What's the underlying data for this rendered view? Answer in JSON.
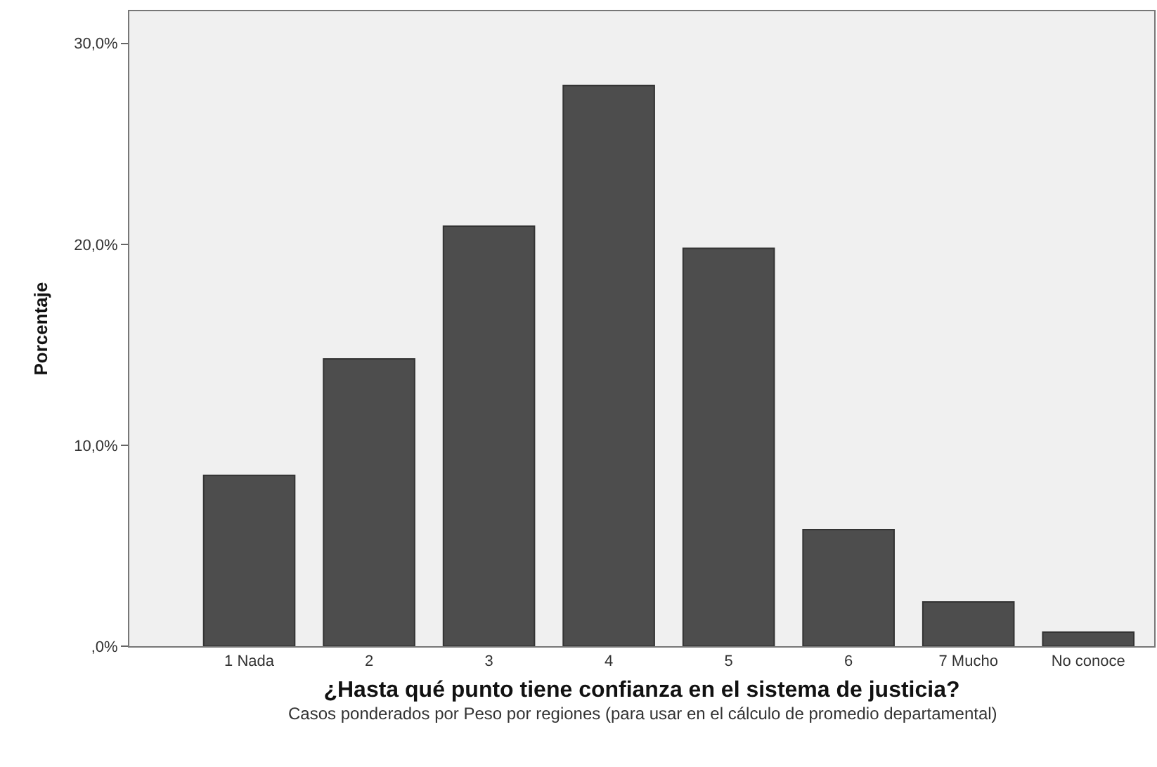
{
  "chart_data": {
    "type": "bar",
    "xlabel": "¿Hasta qué punto tiene confianza en el sistema de justicia?",
    "ylabel": "Porcentaje",
    "annotations": [
      "Casos ponderados por Peso por regiones (para usar en el cálculo de promedio departamental)"
    ],
    "categories": [
      "1 Nada",
      "2",
      "3",
      "4",
      "5",
      "6",
      "7 Mucho",
      "No conoce"
    ],
    "values": [
      8.5,
      14.3,
      20.9,
      27.9,
      19.8,
      5.8,
      2.2,
      0.7
    ],
    "color": "#4d4d4d",
    "ylim": [
      0,
      31.6
    ],
    "yticks": [
      {
        "value": 0,
        "label": ",0%"
      },
      {
        "value": 10,
        "label": "10,0%"
      },
      {
        "value": 20,
        "label": "20,0%"
      },
      {
        "value": 30,
        "label": "30,0%"
      }
    ],
    "grid": false
  }
}
